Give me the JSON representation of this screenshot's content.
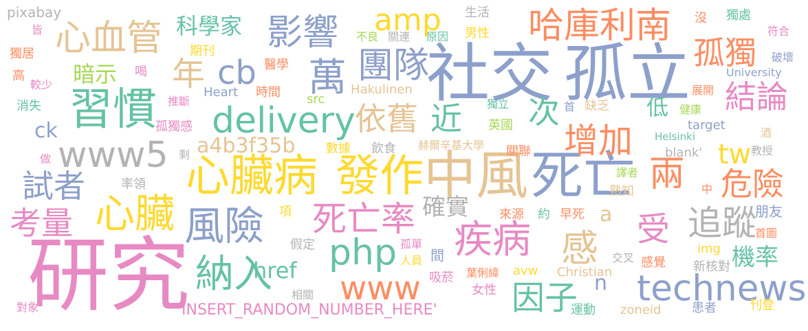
{
  "watermark": "pixabay",
  "palette": {
    "pink": "#e78ac3",
    "blue": "#8da0cb",
    "orange": "#fc8d62",
    "green": "#66c2a5",
    "yellow": "#ffd92f",
    "tan": "#e5c494",
    "lime": "#a6d854",
    "grey": "#b3b3b3"
  },
  "words": [
    {
      "text": "研究",
      "color": "pink"
    },
    {
      "text": "社交",
      "color": "blue"
    },
    {
      "text": "孤立",
      "color": "blue"
    },
    {
      "text": "中風",
      "color": "tan"
    },
    {
      "text": "心臟病",
      "color": "yellow"
    },
    {
      "text": "發作",
      "color": "yellow"
    },
    {
      "text": "死亡",
      "color": "blue"
    },
    {
      "text": "technews",
      "color": "blue"
    },
    {
      "text": "習慣",
      "color": "green"
    },
    {
      "text": "www5",
      "color": "grey"
    },
    {
      "text": "delivery",
      "color": "green"
    },
    {
      "text": "心血管",
      "color": "tan"
    },
    {
      "text": "影響",
      "color": "blue"
    },
    {
      "text": "團隊",
      "color": "blue"
    },
    {
      "text": "哈庫利南",
      "color": "orange"
    },
    {
      "text": "amp",
      "color": "yellow"
    },
    {
      "text": "cb",
      "color": "blue"
    },
    {
      "text": "萬",
      "color": "blue"
    },
    {
      "text": "年",
      "color": "tan"
    },
    {
      "text": "孤獨",
      "color": "orange"
    },
    {
      "text": "結論",
      "color": "pink"
    },
    {
      "text": "依舊",
      "color": "tan"
    },
    {
      "text": "近",
      "color": "green"
    },
    {
      "text": "次",
      "color": "green"
    },
    {
      "text": "增加",
      "color": "orange"
    },
    {
      "text": "tw",
      "color": "yellow"
    },
    {
      "text": "危險",
      "color": "orange"
    },
    {
      "text": "兩",
      "color": "orange"
    },
    {
      "text": "心臟",
      "color": "yellow"
    },
    {
      "text": "考量",
      "color": "pink"
    },
    {
      "text": "試者",
      "color": "blue"
    },
    {
      "text": "風險",
      "color": "blue"
    },
    {
      "text": "死亡率",
      "color": "pink"
    },
    {
      "text": "疾病",
      "color": "pink"
    },
    {
      "text": "php",
      "color": "green"
    },
    {
      "text": "納入",
      "color": "green"
    },
    {
      "text": "www",
      "color": "orange"
    },
    {
      "text": "追蹤",
      "color": "grey"
    },
    {
      "text": "受",
      "color": "pink"
    },
    {
      "text": "感",
      "color": "tan"
    },
    {
      "text": "因子",
      "color": "green"
    },
    {
      "text": "a4b3f35b",
      "color": "tan"
    },
    {
      "text": "確實",
      "color": "grey"
    },
    {
      "text": "機率",
      "color": "green"
    },
    {
      "text": "科學家",
      "color": "green"
    },
    {
      "text": "暗示",
      "color": "lime"
    },
    {
      "text": "href",
      "color": "green"
    },
    {
      "text": "低",
      "color": "green"
    },
    {
      "text": "ck",
      "color": "blue"
    },
    {
      "text": "a",
      "color": "tan"
    },
    {
      "text": "n",
      "color": "blue"
    },
    {
      "text": "朋友",
      "color": "blue"
    },
    {
      "text": "INSERT_RANDOM_NUMBER_HERE'",
      "color": "pink"
    },
    {
      "text": "生活",
      "color": "grey"
    },
    {
      "text": "關連",
      "color": "grey"
    },
    {
      "text": "不良",
      "color": "lime"
    },
    {
      "text": "原因",
      "color": "green"
    },
    {
      "text": "男性",
      "color": "yellow"
    },
    {
      "text": "期刊",
      "color": "yellow"
    },
    {
      "text": "醫學",
      "color": "orange"
    },
    {
      "text": "Heart",
      "color": "blue"
    },
    {
      "text": "時間",
      "color": "orange"
    },
    {
      "text": "Hakulinen",
      "color": "tan"
    },
    {
      "text": "src",
      "color": "lime"
    },
    {
      "text": "推斷",
      "color": "pink"
    },
    {
      "text": "孤獨感",
      "color": "pink"
    },
    {
      "text": "獨立",
      "color": "green"
    },
    {
      "text": "首",
      "color": "blue"
    },
    {
      "text": "缺乏",
      "color": "tan"
    },
    {
      "text": "健康",
      "color": "lime"
    },
    {
      "text": "英國",
      "color": "lime"
    },
    {
      "text": "Helsinki",
      "color": "green"
    },
    {
      "text": "target",
      "color": "blue"
    },
    {
      "text": "數據",
      "color": "yellow"
    },
    {
      "text": "飲食",
      "color": "grey"
    },
    {
      "text": "赫爾辛基大學",
      "color": "tan"
    },
    {
      "text": "關聯",
      "color": "orange"
    },
    {
      "text": "_blank'",
      "color": "grey"
    },
    {
      "text": "教授",
      "color": "grey"
    },
    {
      "text": "酒",
      "color": "tan"
    },
    {
      "text": "剩",
      "color": "grey"
    },
    {
      "text": "做",
      "color": "pink"
    },
    {
      "text": "率領",
      "color": "grey"
    },
    {
      "text": "譯者",
      "color": "lime"
    },
    {
      "text": "熟知",
      "color": "tan"
    },
    {
      "text": "中",
      "color": "orange"
    },
    {
      "text": "項",
      "color": "yellow"
    },
    {
      "text": "來源",
      "color": "orange"
    },
    {
      "text": "約",
      "color": "green"
    },
    {
      "text": "早死",
      "color": "orange"
    },
    {
      "text": "首圖",
      "color": "orange"
    },
    {
      "text": "假定",
      "color": "grey"
    },
    {
      "text": "孤單",
      "color": "pink"
    },
    {
      "text": "人員",
      "color": "yellow"
    },
    {
      "text": "間",
      "color": "blue"
    },
    {
      "text": "img",
      "color": "yellow"
    },
    {
      "text": "交叉",
      "color": "grey"
    },
    {
      "text": "感覺",
      "color": "orange"
    },
    {
      "text": "新核對",
      "color": "grey"
    },
    {
      "text": "吸菸",
      "color": "pink"
    },
    {
      "text": "葉俐緯",
      "color": "orange"
    },
    {
      "text": "avw",
      "color": "yellow"
    },
    {
      "text": "Christian",
      "color": "tan"
    },
    {
      "text": "女性",
      "color": "pink"
    },
    {
      "text": "相關",
      "color": "grey"
    },
    {
      "text": "運動",
      "color": "green"
    },
    {
      "text": "zoneid",
      "color": "tan"
    },
    {
      "text": "患者",
      "color": "blue"
    },
    {
      "text": "刊登",
      "color": "yellow"
    },
    {
      "text": "對象",
      "color": "pink"
    },
    {
      "text": "皆",
      "color": "pink"
    },
    {
      "text": "獨居",
      "color": "orange"
    },
    {
      "text": "喝",
      "color": "pink"
    },
    {
      "text": "高",
      "color": "orange"
    },
    {
      "text": "較少",
      "color": "pink"
    },
    {
      "text": "消失",
      "color": "green"
    },
    {
      "text": "沒",
      "color": "orange"
    },
    {
      "text": "獨處",
      "color": "green"
    },
    {
      "text": "符合",
      "color": "pink"
    },
    {
      "text": "破壞",
      "color": "blue"
    },
    {
      "text": "University",
      "color": "blue"
    },
    {
      "text": "展開",
      "color": "orange"
    }
  ]
}
